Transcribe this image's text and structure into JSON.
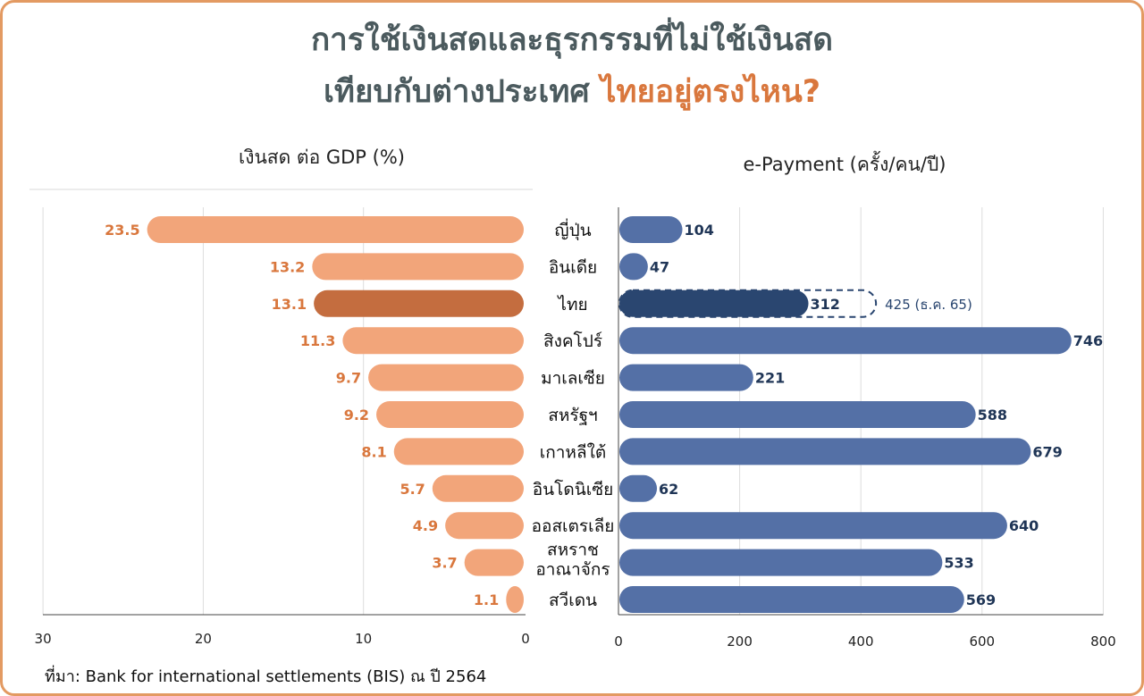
{
  "title": {
    "line1": "การใช้เงินสดและธุรกรรมที่ไม่ใช้เงินสด",
    "line2_prefix": "เทียบกับต่างประเทศ ",
    "line2_highlight": "ไทยอยู่ตรงไหน?"
  },
  "colors": {
    "cash_bar": "#f2a57a",
    "cash_bar_highlight": "#c46d3f",
    "cash_label": "#d9773d",
    "epay_bar": "#5470a6",
    "epay_bar_highlight": "#2a4670",
    "epay_label": "#1f3556",
    "title_highlight": "#d9773d",
    "border": "#e39a62"
  },
  "source": "ที่มา: Bank for international settlements (BIS) ณ ปี 2564",
  "chart_data": [
    {
      "type": "bar",
      "orientation": "horizontal",
      "title": "เงินสด ต่อ GDP (%)",
      "categories": [
        "ญี่ปุ่น",
        "อินเดีย",
        "ไทย",
        "สิงคโปร์",
        "มาเลเซีย",
        "สหรัฐฯ",
        "เกาหลีใต้",
        "อินโดนิเซีย",
        "ออสเตรเลีย",
        "สหราช อาณาจักร",
        "สวีเดน"
      ],
      "values": [
        23.5,
        13.2,
        13.1,
        11.3,
        9.7,
        9.2,
        8.1,
        5.7,
        4.9,
        3.7,
        1.1
      ],
      "value_labels": [
        "23.5",
        "13.2",
        "13.1",
        "11.3",
        "9.7",
        "9.2",
        "8.1",
        "5.7",
        "4.9",
        "3.7",
        "1.1"
      ],
      "highlight_index": 2,
      "xlim": [
        30,
        0
      ],
      "xticks": [
        "30",
        "20",
        "10",
        "0"
      ],
      "grid": true
    },
    {
      "type": "bar",
      "orientation": "horizontal",
      "title": "e-Payment (ครั้ง/คน/ปี)",
      "categories": [
        "ญี่ปุ่น",
        "อินเดีย",
        "ไทย",
        "สิงคโปร์",
        "มาเลเซีย",
        "สหรัฐฯ",
        "เกาหลีใต้",
        "อินโดนิเซีย",
        "ออสเตรเลีย",
        "สหราช อาณาจักร",
        "สวีเดน"
      ],
      "values": [
        104,
        47,
        312,
        746,
        221,
        588,
        679,
        62,
        640,
        533,
        569
      ],
      "value_labels": [
        "104",
        "47",
        "312",
        "746",
        "221",
        "588",
        "679",
        "62",
        "640",
        "533",
        "569"
      ],
      "highlight_index": 2,
      "annotation": {
        "index": 2,
        "value": 425,
        "text": "425 (ธ.ค. 65)"
      },
      "xlim": [
        0,
        800
      ],
      "xticks": [
        "0",
        "200",
        "400",
        "600",
        "800"
      ],
      "grid": true
    }
  ]
}
